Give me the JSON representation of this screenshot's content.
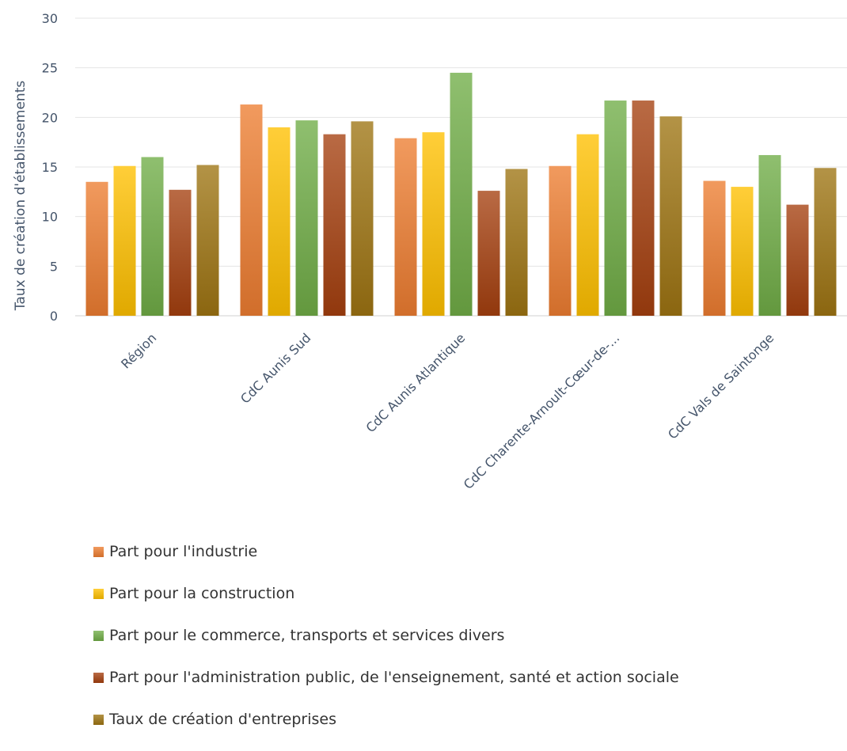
{
  "chart_data": {
    "type": "bar",
    "title": "",
    "xlabel": "",
    "ylabel": "Taux de création d'établissements",
    "ylim": [
      0,
      30
    ],
    "yticks": [
      0,
      5,
      10,
      15,
      20,
      25,
      30
    ],
    "grid": true,
    "legend_position": "bottom",
    "categories": [
      "Région",
      "CdC Aunis Sud",
      "CdC Aunis Atlantique",
      "CdC Charente-Arnoult-Cœur-de-...",
      "CdC Vals de Saintonge"
    ],
    "series": [
      {
        "name": "Part pour l'industrie",
        "color": "#ed7d31",
        "values": [
          13.5,
          21.3,
          17.9,
          15.1,
          13.6
        ]
      },
      {
        "name": "Part pour la construction",
        "color": "#ffc000",
        "values": [
          15.1,
          19.0,
          18.5,
          18.3,
          13.0
        ]
      },
      {
        "name": "Part pour le commerce, transports et services divers",
        "color": "#70ad47",
        "values": [
          16.0,
          19.7,
          24.5,
          21.7,
          16.2
        ]
      },
      {
        "name": "Part pour l'administration public, de l'enseignement, santé et action sociale",
        "color": "#a5400f",
        "values": [
          12.7,
          18.3,
          12.6,
          21.7,
          11.2
        ]
      },
      {
        "name": "Taux de création d'entreprises",
        "color": "#9e7412",
        "values": [
          15.2,
          19.6,
          14.8,
          20.1,
          14.9
        ]
      }
    ]
  }
}
